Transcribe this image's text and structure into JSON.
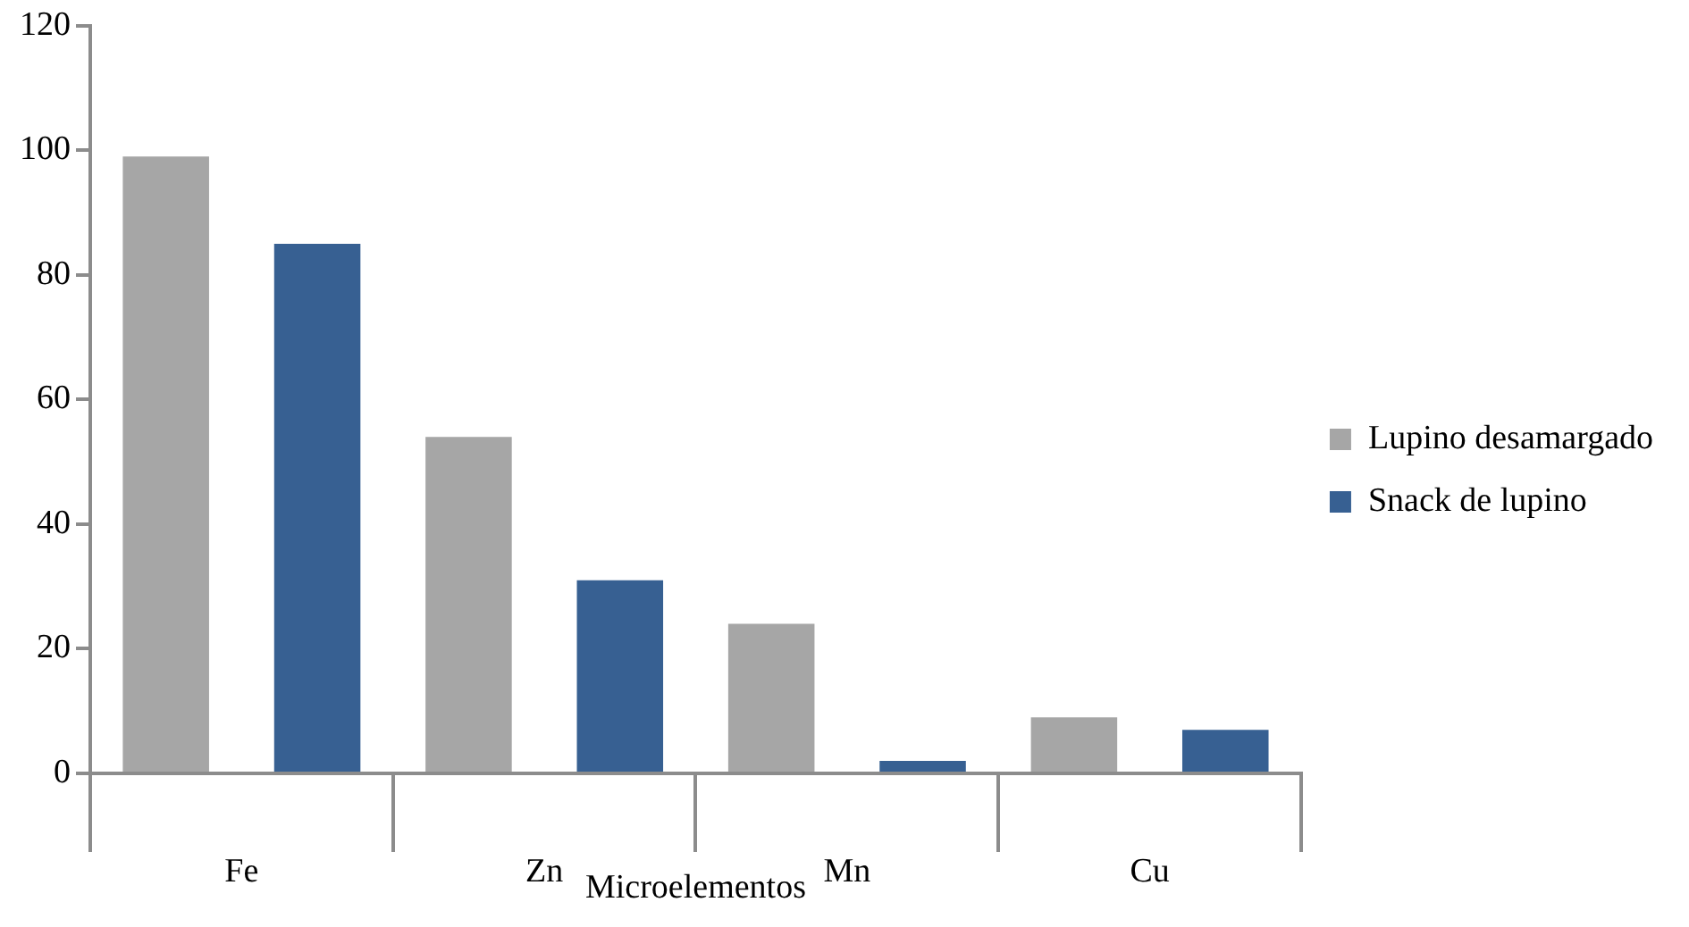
{
  "chart_data": {
    "type": "bar",
    "xlabel": "Microelementos",
    "categories": [
      "Fe",
      "Zn",
      "Mn",
      "Cu"
    ],
    "series": [
      {
        "name": "Lupino desamargado",
        "color": "#a6a6a6",
        "values": [
          99,
          54,
          24,
          9
        ]
      },
      {
        "name": "Snack de lupino",
        "color": "#376092",
        "values": [
          85,
          31,
          2,
          7
        ]
      }
    ],
    "ylim": [
      0,
      120
    ],
    "yticks": [
      0,
      20,
      40,
      60,
      80,
      100,
      120
    ],
    "grid": false,
    "legend": "right"
  }
}
